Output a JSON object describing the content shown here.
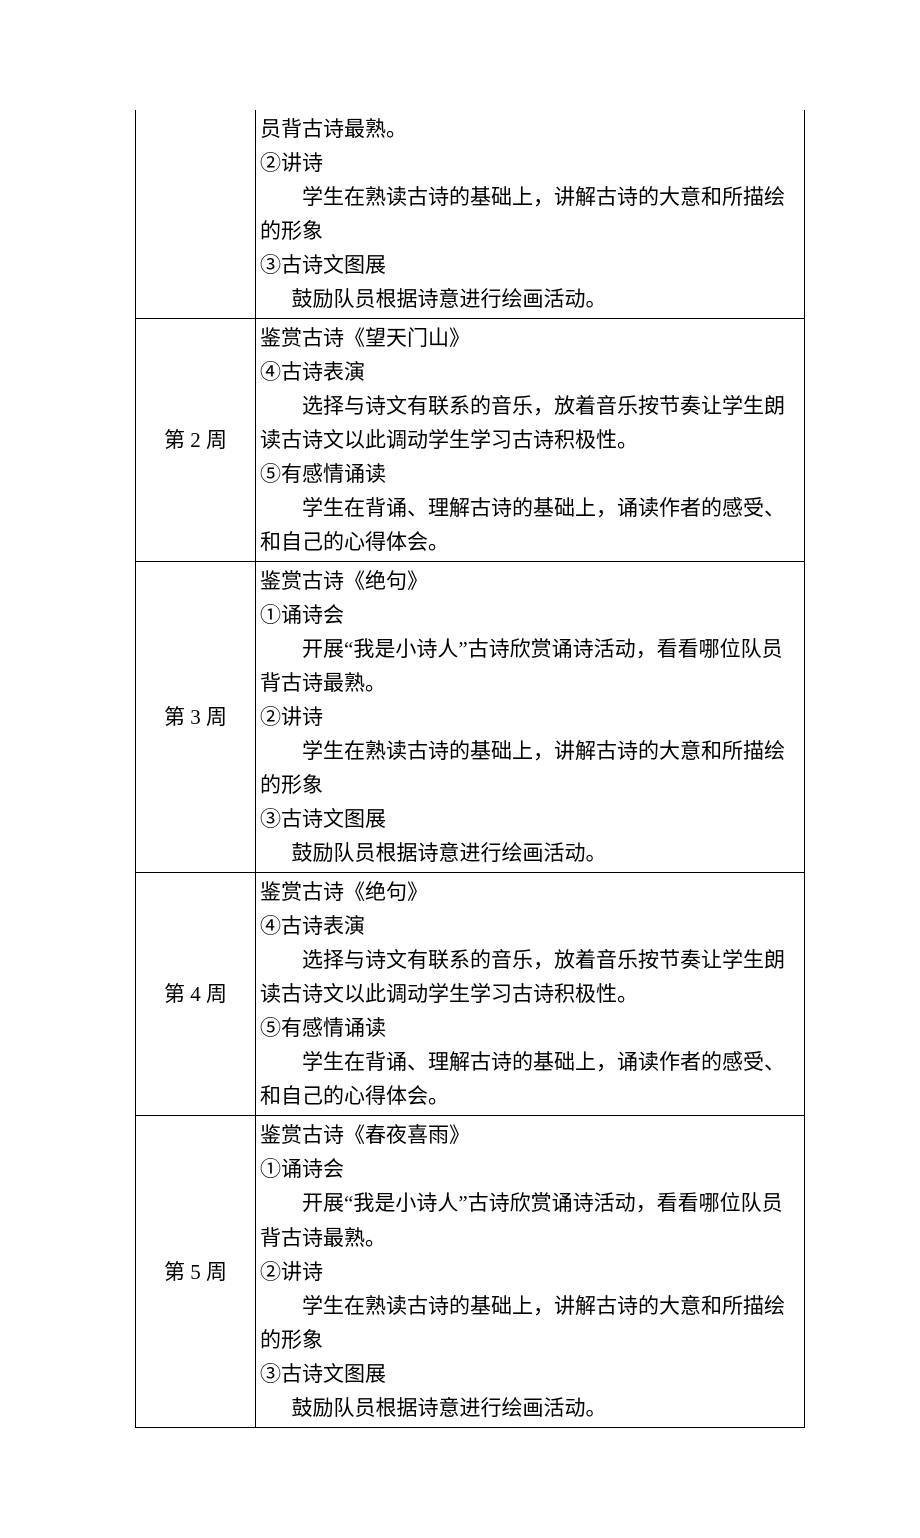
{
  "table": {
    "rows": [
      {
        "week": "",
        "topBorder": false,
        "lines": [
          {
            "cls": "",
            "text": "员背古诗最熟。"
          },
          {
            "cls": "",
            "text": "②讲诗"
          },
          {
            "cls": "indent1",
            "text": "学生在熟读古诗的基础上，讲解古诗的大意和所描绘的形象"
          },
          {
            "cls": "",
            "text": "③古诗文图展"
          },
          {
            "cls": "indent-half",
            "text": "鼓励队员根据诗意进行绘画活动。"
          }
        ]
      },
      {
        "week": "第 2 周",
        "topBorder": true,
        "lines": [
          {
            "cls": "",
            "text": "鉴赏古诗《望天门山》"
          },
          {
            "cls": "",
            "text": "④古诗表演"
          },
          {
            "cls": "indent1",
            "text": "选择与诗文有联系的音乐，放着音乐按节奏让学生朗读古诗文以此调动学生学习古诗积极性。"
          },
          {
            "cls": "",
            "text": "⑤有感情诵读"
          },
          {
            "cls": "indent1",
            "text": "学生在背诵、理解古诗的基础上，诵读作者的感受、和自己的心得体会。"
          }
        ]
      },
      {
        "week": "第 3 周",
        "topBorder": true,
        "lines": [
          {
            "cls": "",
            "text": "鉴赏古诗《绝句》"
          },
          {
            "cls": "",
            "text": "①诵诗会"
          },
          {
            "cls": "indent1",
            "text": "开展“我是小诗人”古诗欣赏诵诗活动，看看哪位队员背古诗最熟。"
          },
          {
            "cls": "",
            "text": "②讲诗"
          },
          {
            "cls": "indent1",
            "text": "学生在熟读古诗的基础上，讲解古诗的大意和所描绘的形象"
          },
          {
            "cls": "",
            "text": "③古诗文图展"
          },
          {
            "cls": "indent-half",
            "text": "鼓励队员根据诗意进行绘画活动。"
          }
        ]
      },
      {
        "week": "第 4 周",
        "topBorder": true,
        "lines": [
          {
            "cls": "",
            "text": "鉴赏古诗《绝句》"
          },
          {
            "cls": "",
            "text": "④古诗表演"
          },
          {
            "cls": "indent1",
            "text": "选择与诗文有联系的音乐，放着音乐按节奏让学生朗读古诗文以此调动学生学习古诗积极性。"
          },
          {
            "cls": "",
            "text": "⑤有感情诵读"
          },
          {
            "cls": "indent1",
            "text": "学生在背诵、理解古诗的基础上，诵读作者的感受、和自己的心得体会。"
          }
        ]
      },
      {
        "week": "第 5 周",
        "topBorder": true,
        "lines": [
          {
            "cls": "",
            "text": "鉴赏古诗《春夜喜雨》"
          },
          {
            "cls": "",
            "text": "①诵诗会"
          },
          {
            "cls": "indent1",
            "text": "开展“我是小诗人”古诗欣赏诵诗活动，看看哪位队员背古诗最熟。"
          },
          {
            "cls": "",
            "text": "②讲诗"
          },
          {
            "cls": "indent1",
            "text": "学生在熟读古诗的基础上，讲解古诗的大意和所描绘的形象"
          },
          {
            "cls": "",
            "text": "③古诗文图展"
          },
          {
            "cls": "indent-half",
            "text": "鼓励队员根据诗意进行绘画活动。"
          }
        ]
      }
    ]
  }
}
